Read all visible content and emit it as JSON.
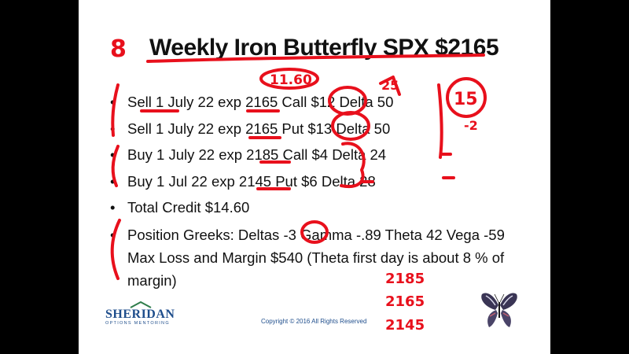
{
  "slide": {
    "title": "Weekly Iron Butterfly SPX $2165",
    "bullets": [
      "Sell 1 July 22 exp 2165 Call $12  Delta 50",
      "Sell 1  July 22 exp 2165 Put $13  Delta 50",
      "Buy 1 July 22 exp  2185 Call $4    Delta 24",
      "Buy 1 Jul 22 exp  2145 Put  $6    Delta  28",
      "Total Credit $14.60",
      "Position Greeks: Deltas -3 Gamma  -.89   Theta  42 Vega  -59  Max Loss and Margin $540   (Theta first day is about 8 % of margin)"
    ],
    "logo_name": "SHERIDAN",
    "logo_subtitle": "OPTIONS MENTORING",
    "copyright": "Copyright © 2016 All Rights Reserved"
  },
  "annotations": {
    "slide_number": "8",
    "credit_note": "11.60",
    "note_25": "25",
    "circled_15": "15",
    "note_minus2": "-2",
    "strikes": [
      "2185",
      "2165",
      "2145"
    ]
  },
  "colors": {
    "ink": "#e8101c",
    "brand": "#1f4e8c",
    "frame": "#000000"
  }
}
